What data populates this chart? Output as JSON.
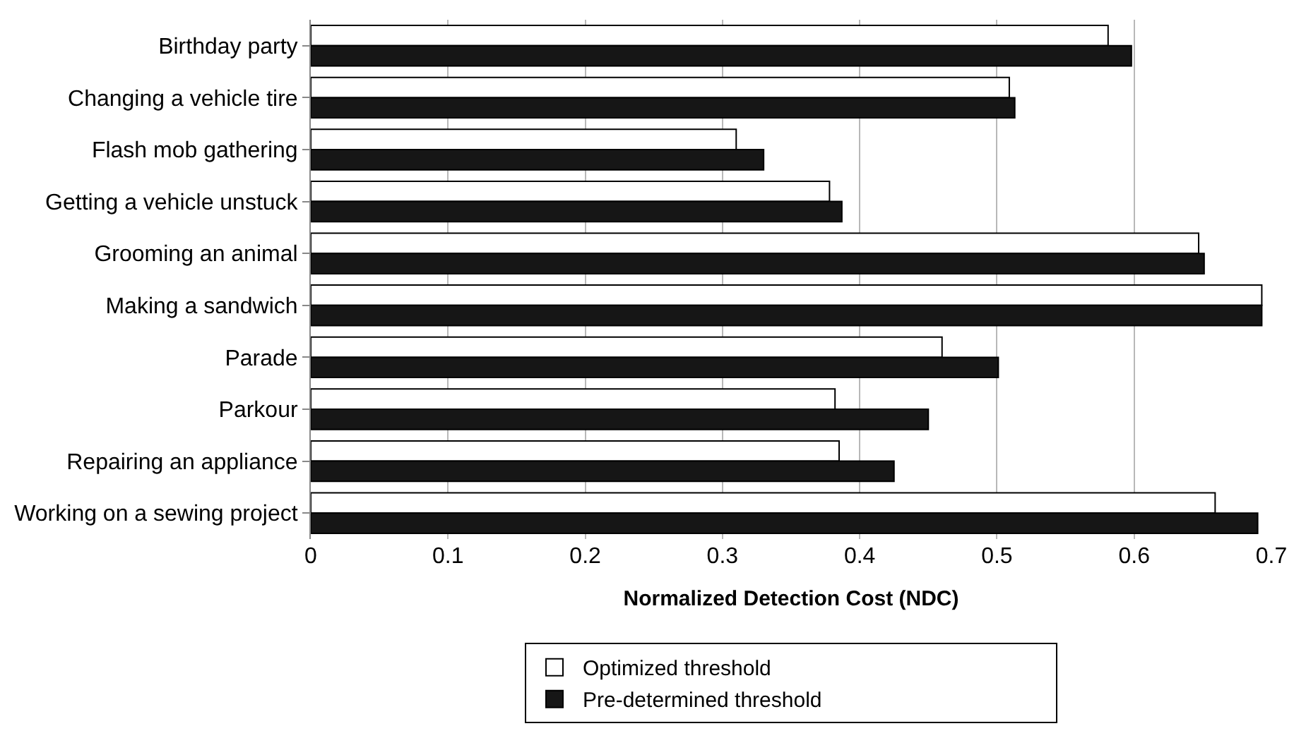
{
  "chart_data": {
    "type": "bar",
    "orientation": "horizontal",
    "xlabel": "Normalized Detection Cost (NDC)",
    "categories": [
      "Birthday party",
      "Changing a vehicle tire",
      "Flash mob gathering",
      "Getting a vehicle unstuck",
      "Grooming an animal",
      "Making a sandwich",
      "Parade",
      "Parkour",
      "Repairing an appliance",
      "Working on a sewing project"
    ],
    "series": [
      {
        "name": "Optimized threshold",
        "color": "#ffffff",
        "values": [
          0.581,
          0.509,
          0.31,
          0.378,
          0.647,
          0.693,
          0.46,
          0.382,
          0.385,
          0.659
        ]
      },
      {
        "name": "Pre-determined threshold",
        "color": "#161616",
        "values": [
          0.598,
          0.513,
          0.33,
          0.387,
          0.651,
          0.693,
          0.501,
          0.45,
          0.425,
          0.69
        ]
      }
    ],
    "xlim": [
      0,
      0.7
    ],
    "xticks": [
      0,
      0.1,
      0.2,
      0.3,
      0.4,
      0.5,
      0.6,
      0.7
    ],
    "grid": "x",
    "legend": "bottom"
  }
}
